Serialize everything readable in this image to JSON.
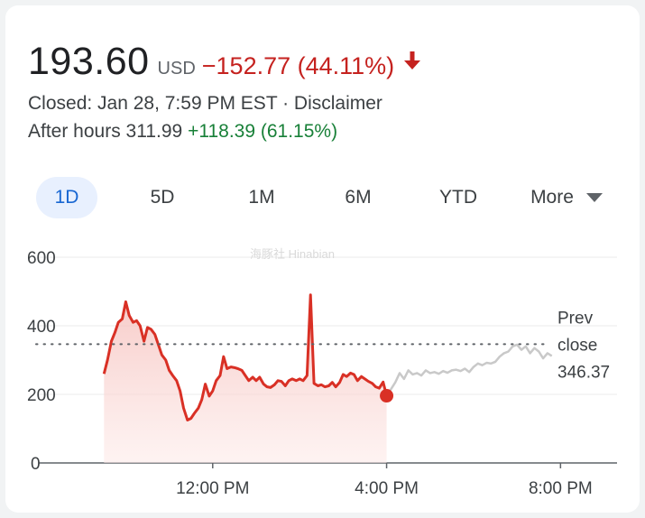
{
  "quote": {
    "price": "193.60",
    "currency": "USD",
    "change": "−152.77 (44.11%)",
    "direction": "down",
    "status": "Closed: Jan 28, 7:59 PM EST · Disclaimer",
    "after_hours_label": "After hours 311.99",
    "after_hours_change": "+118.39 (61.15%)"
  },
  "tabs": [
    {
      "label": "1D",
      "active": true
    },
    {
      "label": "5D",
      "active": false
    },
    {
      "label": "1M",
      "active": false
    },
    {
      "label": "6M",
      "active": false
    },
    {
      "label": "YTD",
      "active": false
    },
    {
      "label": "More",
      "active": false
    }
  ],
  "colors": {
    "down": "#c5221f",
    "up": "#188038",
    "after_hours_line": "#c9c9c9",
    "active_tab_bg": "#e8f0fe",
    "active_tab_text": "#1967d2"
  },
  "watermark": "海豚社 Hinabian",
  "chart_data": {
    "type": "line",
    "ylim": [
      0,
      600
    ],
    "y_ticks": [
      0,
      200,
      400,
      600
    ],
    "x_range": [
      10.0,
      21.5
    ],
    "x_ticks": [
      {
        "value": 12,
        "label": "12:00 PM"
      },
      {
        "value": 16,
        "label": "4:00 PM"
      },
      {
        "value": 20,
        "label": "8:00 PM"
      }
    ],
    "prev_close": {
      "value": 346.37,
      "label_line1": "Prev",
      "label_line2": "close",
      "value_label": "346.37"
    },
    "last_point": {
      "x": 16.0,
      "y": 196
    },
    "series": [
      {
        "key": "regular",
        "points": [
          [
            9.5,
            260
          ],
          [
            9.58,
            300
          ],
          [
            9.67,
            355
          ],
          [
            9.75,
            380
          ],
          [
            9.83,
            410
          ],
          [
            9.92,
            420
          ],
          [
            10.0,
            470
          ],
          [
            10.08,
            430
          ],
          [
            10.17,
            410
          ],
          [
            10.25,
            415
          ],
          [
            10.33,
            400
          ],
          [
            10.42,
            355
          ],
          [
            10.5,
            395
          ],
          [
            10.58,
            390
          ],
          [
            10.67,
            375
          ],
          [
            10.75,
            345
          ],
          [
            10.83,
            315
          ],
          [
            10.92,
            300
          ],
          [
            11.0,
            270
          ],
          [
            11.08,
            255
          ],
          [
            11.17,
            240
          ],
          [
            11.25,
            210
          ],
          [
            11.33,
            160
          ],
          [
            11.42,
            125
          ],
          [
            11.5,
            130
          ],
          [
            11.58,
            145
          ],
          [
            11.67,
            160
          ],
          [
            11.75,
            185
          ],
          [
            11.83,
            230
          ],
          [
            11.92,
            195
          ],
          [
            12.0,
            210
          ],
          [
            12.08,
            240
          ],
          [
            12.17,
            255
          ],
          [
            12.25,
            310
          ],
          [
            12.33,
            275
          ],
          [
            12.42,
            280
          ],
          [
            12.5,
            278
          ],
          [
            12.58,
            275
          ],
          [
            12.67,
            270
          ],
          [
            12.75,
            255
          ],
          [
            12.83,
            240
          ],
          [
            12.92,
            250
          ],
          [
            13.0,
            240
          ],
          [
            13.08,
            250
          ],
          [
            13.17,
            230
          ],
          [
            13.25,
            222
          ],
          [
            13.33,
            220
          ],
          [
            13.42,
            228
          ],
          [
            13.5,
            240
          ],
          [
            13.58,
            238
          ],
          [
            13.67,
            225
          ],
          [
            13.75,
            240
          ],
          [
            13.83,
            245
          ],
          [
            13.92,
            240
          ],
          [
            14.0,
            245
          ],
          [
            14.08,
            240
          ],
          [
            14.17,
            255
          ],
          [
            14.25,
            490
          ],
          [
            14.33,
            232
          ],
          [
            14.42,
            225
          ],
          [
            14.5,
            228
          ],
          [
            14.58,
            222
          ],
          [
            14.67,
            225
          ],
          [
            14.75,
            235
          ],
          [
            14.83,
            222
          ],
          [
            14.92,
            235
          ],
          [
            15.0,
            258
          ],
          [
            15.08,
            252
          ],
          [
            15.17,
            262
          ],
          [
            15.25,
            258
          ],
          [
            15.33,
            240
          ],
          [
            15.42,
            252
          ],
          [
            15.5,
            245
          ],
          [
            15.58,
            238
          ],
          [
            15.67,
            232
          ],
          [
            15.75,
            222
          ],
          [
            15.83,
            218
          ],
          [
            15.92,
            236
          ],
          [
            16.0,
            196
          ]
        ]
      },
      {
        "key": "after_hours",
        "points": [
          [
            16.0,
            196
          ],
          [
            16.1,
            215
          ],
          [
            16.2,
            235
          ],
          [
            16.3,
            262
          ],
          [
            16.4,
            245
          ],
          [
            16.5,
            270
          ],
          [
            16.6,
            258
          ],
          [
            16.7,
            262
          ],
          [
            16.8,
            255
          ],
          [
            16.9,
            270
          ],
          [
            17.0,
            262
          ],
          [
            17.1,
            265
          ],
          [
            17.2,
            260
          ],
          [
            17.3,
            268
          ],
          [
            17.4,
            263
          ],
          [
            17.5,
            270
          ],
          [
            17.6,
            272
          ],
          [
            17.7,
            268
          ],
          [
            17.8,
            275
          ],
          [
            17.9,
            265
          ],
          [
            18.0,
            280
          ],
          [
            18.1,
            290
          ],
          [
            18.2,
            285
          ],
          [
            18.3,
            292
          ],
          [
            18.4,
            290
          ],
          [
            18.5,
            295
          ],
          [
            18.6,
            310
          ],
          [
            18.7,
            320
          ],
          [
            18.8,
            325
          ],
          [
            18.9,
            340
          ],
          [
            19.0,
            345
          ],
          [
            19.1,
            330
          ],
          [
            19.2,
            340
          ],
          [
            19.3,
            320
          ],
          [
            19.4,
            335
          ],
          [
            19.5,
            325
          ],
          [
            19.6,
            305
          ],
          [
            19.7,
            320
          ],
          [
            19.8,
            312
          ]
        ]
      }
    ]
  }
}
